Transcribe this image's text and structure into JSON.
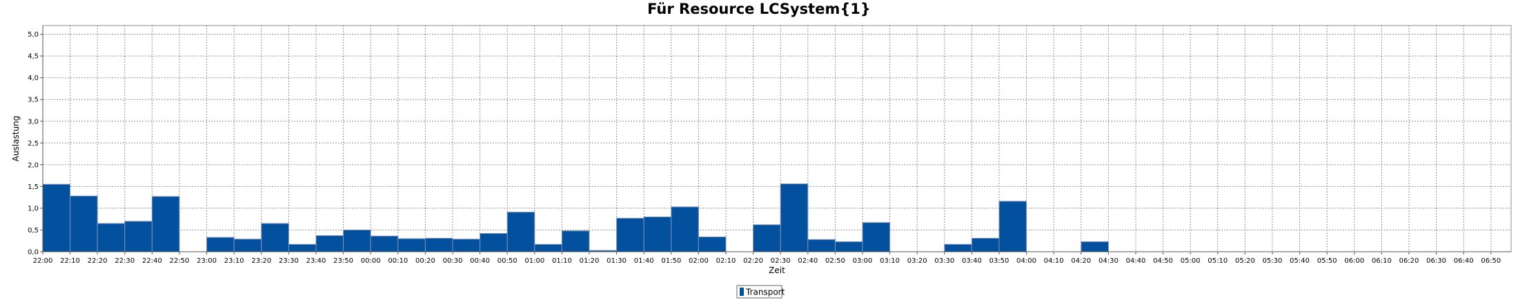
{
  "chart_data": {
    "type": "bar",
    "title": "Für Resource LCSystem{1}",
    "xlabel": "Zeit",
    "ylabel": "Auslastung",
    "ylim": [
      0,
      5.2
    ],
    "yticks": [
      "0,0",
      "0,5",
      "1,0",
      "1,5",
      "2,0",
      "2,5",
      "3,0",
      "3,5",
      "4,0",
      "4,5",
      "5,0"
    ],
    "grid": true,
    "legend_position": "bottom-center",
    "categories": [
      "22:00",
      "22:10",
      "22:20",
      "22:30",
      "22:40",
      "22:50",
      "23:00",
      "23:10",
      "23:20",
      "23:30",
      "23:40",
      "23:50",
      "00:00",
      "00:10",
      "00:20",
      "00:30",
      "00:40",
      "00:50",
      "01:00",
      "01:10",
      "01:20",
      "01:30",
      "01:40",
      "01:50",
      "02:00",
      "02:10",
      "02:20",
      "02:30",
      "02:40",
      "02:50",
      "03:00",
      "03:10",
      "03:20",
      "03:30",
      "03:40",
      "03:50",
      "04:00",
      "04:10",
      "04:20",
      "04:30",
      "04:40",
      "04:50",
      "05:00",
      "05:10",
      "05:20",
      "05:30",
      "05:40",
      "05:50",
      "06:00",
      "06:10",
      "06:20",
      "06:30",
      "06:40",
      "06:50"
    ],
    "series": [
      {
        "name": "Transport",
        "color": "#02509e",
        "values": [
          1.55,
          1.28,
          0.65,
          0.7,
          1.27,
          0,
          0.33,
          0.29,
          0.65,
          0.17,
          0.37,
          0.5,
          0.36,
          0.3,
          0.31,
          0.29,
          0.42,
          0.91,
          0.17,
          0.48,
          0.03,
          0.77,
          0.8,
          1.03,
          0.34,
          0,
          0.62,
          1.56,
          0.28,
          0.23,
          0.67,
          0,
          0,
          0.17,
          0.31,
          1.16,
          0,
          0,
          0.23,
          0,
          0,
          0,
          0,
          0,
          0,
          0,
          0,
          0,
          0,
          0,
          0,
          0,
          0,
          0
        ]
      }
    ]
  }
}
